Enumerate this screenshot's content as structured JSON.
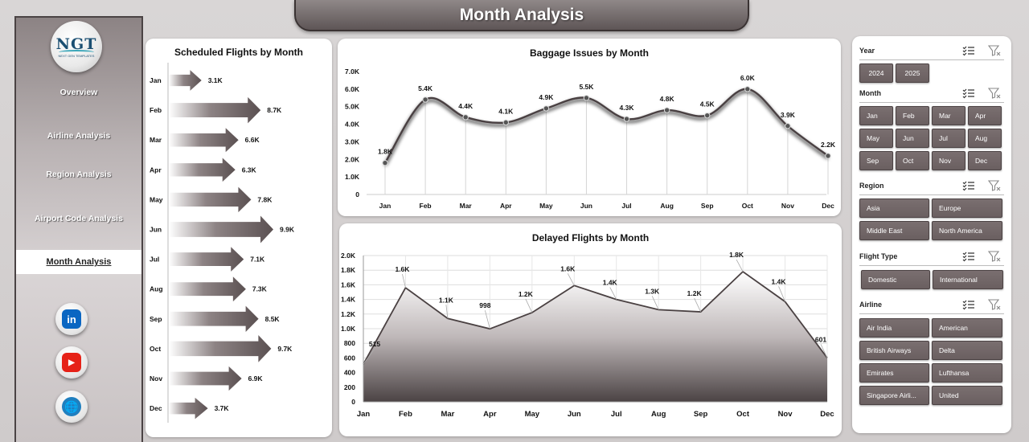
{
  "header": {
    "title": "Month Analysis"
  },
  "sidebar": {
    "logo": {
      "text": "NGT",
      "subtitle": "NEXT GEN TEMPLATES"
    },
    "items": [
      {
        "label": "Overview"
      },
      {
        "label": "Airline Analysis"
      },
      {
        "label": "Region Analysis"
      },
      {
        "label": "Airport Code Analysis"
      },
      {
        "label": "Month Analysis",
        "active": true
      }
    ],
    "social": [
      {
        "name": "linkedin",
        "glyph": "in",
        "color": "#0a66c2"
      },
      {
        "name": "youtube",
        "glyph": "▶",
        "color": "#e62117"
      },
      {
        "name": "website",
        "glyph": "🌐",
        "color": "#1f7fbf"
      }
    ]
  },
  "chart_data": [
    {
      "type": "bar",
      "orientation": "horizontal",
      "title": "Scheduled Flights by Month",
      "categories": [
        "Jan",
        "Feb",
        "Mar",
        "Apr",
        "May",
        "Jun",
        "Jul",
        "Aug",
        "Sep",
        "Oct",
        "Nov",
        "Dec"
      ],
      "values": [
        3100,
        8700,
        6600,
        6300,
        7800,
        9900,
        7100,
        7300,
        8500,
        9700,
        6900,
        3700
      ],
      "data_labels": [
        "3.1K",
        "8.7K",
        "6.6K",
        "6.3K",
        "7.8K",
        "9.9K",
        "7.1K",
        "7.3K",
        "8.5K",
        "9.7K",
        "6.9K",
        "3.7K"
      ],
      "bar_shape": "arrow",
      "color": "#5b5152"
    },
    {
      "type": "line",
      "title": "Baggage Issues by Month",
      "categories": [
        "Jan",
        "Feb",
        "Mar",
        "Apr",
        "May",
        "Jun",
        "Jul",
        "Aug",
        "Sep",
        "Oct",
        "Nov",
        "Dec"
      ],
      "values": [
        1800,
        5400,
        4400,
        4100,
        4900,
        5500,
        4300,
        4800,
        4500,
        6000,
        3900,
        2200
      ],
      "data_labels": [
        "1.8K",
        "5.4K",
        "4.4K",
        "4.1K",
        "4.9K",
        "5.5K",
        "4.3K",
        "4.8K",
        "4.5K",
        "6.0K",
        "3.9K",
        "2.2K"
      ],
      "ylim": [
        0,
        7000
      ],
      "yticks": [
        "0",
        "1.0K",
        "2.0K",
        "3.0K",
        "4.0K",
        "5.0K",
        "6.0K",
        "7.0K"
      ],
      "smooth": true,
      "color": "#4a4142"
    },
    {
      "type": "area",
      "title": "Delayed Flights by Month",
      "categories": [
        "Jan",
        "Feb",
        "Mar",
        "Apr",
        "May",
        "Jun",
        "Jul",
        "Aug",
        "Sep",
        "Oct",
        "Nov",
        "Dec"
      ],
      "values": [
        515,
        1560,
        1140,
        998,
        1220,
        1590,
        1400,
        1260,
        1230,
        1780,
        1370,
        601
      ],
      "data_labels": [
        "515",
        "1.6K",
        "1.1K",
        "998",
        "1.2K",
        "1.6K",
        "1.4K",
        "1.3K",
        "1.2K",
        "1.8K",
        "1.4K",
        "601"
      ],
      "ylim": [
        0,
        2000
      ],
      "yticks": [
        "0",
        "200",
        "400",
        "600",
        "800",
        "1.0K",
        "1.2K",
        "1.4K",
        "1.6K",
        "1.8K",
        "2.0K"
      ],
      "grid": true,
      "color": "#4a4142"
    }
  ],
  "slicers": {
    "year": {
      "label": "Year",
      "options": [
        "2024",
        "2025"
      ]
    },
    "month": {
      "label": "Month",
      "options": [
        "Jan",
        "Feb",
        "Mar",
        "Apr",
        "May",
        "Jun",
        "Jul",
        "Aug",
        "Sep",
        "Oct",
        "Nov",
        "Dec"
      ]
    },
    "region": {
      "label": "Region",
      "options": [
        "Asia",
        "Europe",
        "Middle East",
        "North America"
      ]
    },
    "flight_type": {
      "label": "Flight Type",
      "options": [
        "Domestic",
        "International"
      ]
    },
    "airline": {
      "label": "Airline",
      "options": [
        "Air India",
        "American",
        "British Airways",
        "Delta",
        "Emirates",
        "Lufthansa",
        "Singapore Airli...",
        "United"
      ]
    }
  }
}
